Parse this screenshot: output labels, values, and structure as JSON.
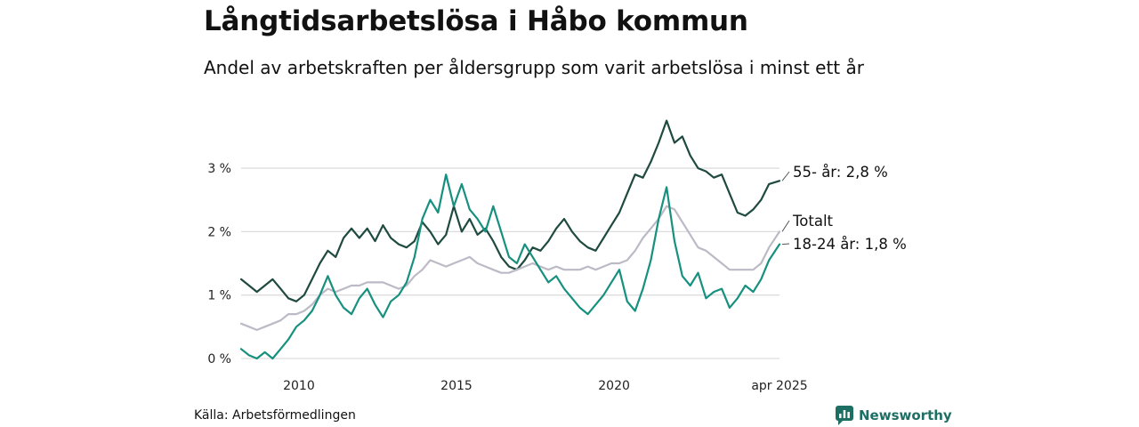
{
  "title": "Långtidsarbetslösa i Håbo kommun",
  "subtitle": "Andel av arbetskraften per åldersgrupp som varit arbetslösa i minst ett år",
  "source": "Källa: Arbetsförmedlingen",
  "logo": {
    "text": "Newsworthy",
    "icon": "newsworthy-logo-icon"
  },
  "colors": {
    "older": "#1f4a40",
    "young": "#16907f",
    "total": "#bcbac6",
    "grid": "#dddddd",
    "brand": "#1d6f63"
  },
  "chart_data": {
    "type": "line",
    "title": "Långtidsarbetslösa i Håbo kommun",
    "xlabel": "",
    "ylabel": "",
    "grid": true,
    "legend": "direct labels at line ends (right)",
    "x_ticks": [
      "2010",
      "2015",
      "2020",
      "apr 2025"
    ],
    "y_ticks": [
      "0 %",
      "1 %",
      "2 %",
      "3 %"
    ],
    "ylim": [
      0,
      3.8
    ],
    "xlim": [
      "2008-03",
      "2025-04"
    ],
    "series": [
      {
        "key": "older",
        "label": "55- år: 2,8 %",
        "values": [
          [
            "2008-03",
            1.25
          ],
          [
            "2008-06",
            1.15
          ],
          [
            "2008-09",
            1.05
          ],
          [
            "2008-12",
            1.15
          ],
          [
            "2009-03",
            1.25
          ],
          [
            "2009-06",
            1.1
          ],
          [
            "2009-09",
            0.95
          ],
          [
            "2009-12",
            0.9
          ],
          [
            "2010-03",
            1.0
          ],
          [
            "2010-06",
            1.25
          ],
          [
            "2010-09",
            1.5
          ],
          [
            "2010-12",
            1.7
          ],
          [
            "2011-03",
            1.6
          ],
          [
            "2011-06",
            1.9
          ],
          [
            "2011-09",
            2.05
          ],
          [
            "2011-12",
            1.9
          ],
          [
            "2012-03",
            2.05
          ],
          [
            "2012-06",
            1.85
          ],
          [
            "2012-09",
            2.1
          ],
          [
            "2012-12",
            1.9
          ],
          [
            "2013-03",
            1.8
          ],
          [
            "2013-06",
            1.75
          ],
          [
            "2013-09",
            1.85
          ],
          [
            "2013-12",
            2.15
          ],
          [
            "2014-03",
            2.0
          ],
          [
            "2014-06",
            1.8
          ],
          [
            "2014-09",
            1.95
          ],
          [
            "2014-12",
            2.4
          ],
          [
            "2015-03",
            2.0
          ],
          [
            "2015-06",
            2.2
          ],
          [
            "2015-09",
            1.95
          ],
          [
            "2015-12",
            2.05
          ],
          [
            "2016-03",
            1.85
          ],
          [
            "2016-06",
            1.6
          ],
          [
            "2016-09",
            1.45
          ],
          [
            "2016-12",
            1.4
          ],
          [
            "2017-03",
            1.55
          ],
          [
            "2017-06",
            1.75
          ],
          [
            "2017-09",
            1.7
          ],
          [
            "2017-12",
            1.85
          ],
          [
            "2018-03",
            2.05
          ],
          [
            "2018-06",
            2.2
          ],
          [
            "2018-09",
            2.0
          ],
          [
            "2018-12",
            1.85
          ],
          [
            "2019-03",
            1.75
          ],
          [
            "2019-06",
            1.7
          ],
          [
            "2019-09",
            1.9
          ],
          [
            "2019-12",
            2.1
          ],
          [
            "2020-03",
            2.3
          ],
          [
            "2020-06",
            2.6
          ],
          [
            "2020-09",
            2.9
          ],
          [
            "2020-12",
            2.85
          ],
          [
            "2021-03",
            3.1
          ],
          [
            "2021-06",
            3.4
          ],
          [
            "2021-09",
            3.75
          ],
          [
            "2021-12",
            3.4
          ],
          [
            "2022-03",
            3.5
          ],
          [
            "2022-06",
            3.2
          ],
          [
            "2022-09",
            3.0
          ],
          [
            "2022-12",
            2.95
          ],
          [
            "2023-03",
            2.85
          ],
          [
            "2023-06",
            2.9
          ],
          [
            "2023-09",
            2.6
          ],
          [
            "2023-12",
            2.3
          ],
          [
            "2024-03",
            2.25
          ],
          [
            "2024-06",
            2.35
          ],
          [
            "2024-09",
            2.5
          ],
          [
            "2024-12",
            2.75
          ],
          [
            "2025-04",
            2.8
          ]
        ]
      },
      {
        "key": "total",
        "label": "Totalt",
        "values": [
          [
            "2008-03",
            0.55
          ],
          [
            "2008-06",
            0.5
          ],
          [
            "2008-09",
            0.45
          ],
          [
            "2008-12",
            0.5
          ],
          [
            "2009-03",
            0.55
          ],
          [
            "2009-06",
            0.6
          ],
          [
            "2009-09",
            0.7
          ],
          [
            "2009-12",
            0.7
          ],
          [
            "2010-03",
            0.75
          ],
          [
            "2010-06",
            0.85
          ],
          [
            "2010-09",
            1.0
          ],
          [
            "2010-12",
            1.1
          ],
          [
            "2011-03",
            1.05
          ],
          [
            "2011-06",
            1.1
          ],
          [
            "2011-09",
            1.15
          ],
          [
            "2011-12",
            1.15
          ],
          [
            "2012-03",
            1.2
          ],
          [
            "2012-06",
            1.2
          ],
          [
            "2012-09",
            1.2
          ],
          [
            "2012-12",
            1.15
          ],
          [
            "2013-03",
            1.1
          ],
          [
            "2013-06",
            1.15
          ],
          [
            "2013-09",
            1.3
          ],
          [
            "2013-12",
            1.4
          ],
          [
            "2014-03",
            1.55
          ],
          [
            "2014-06",
            1.5
          ],
          [
            "2014-09",
            1.45
          ],
          [
            "2014-12",
            1.5
          ],
          [
            "2015-03",
            1.55
          ],
          [
            "2015-06",
            1.6
          ],
          [
            "2015-09",
            1.5
          ],
          [
            "2015-12",
            1.45
          ],
          [
            "2016-03",
            1.4
          ],
          [
            "2016-06",
            1.35
          ],
          [
            "2016-09",
            1.35
          ],
          [
            "2016-12",
            1.4
          ],
          [
            "2017-03",
            1.45
          ],
          [
            "2017-06",
            1.5
          ],
          [
            "2017-09",
            1.45
          ],
          [
            "2017-12",
            1.4
          ],
          [
            "2018-03",
            1.45
          ],
          [
            "2018-06",
            1.4
          ],
          [
            "2018-09",
            1.4
          ],
          [
            "2018-12",
            1.4
          ],
          [
            "2019-03",
            1.45
          ],
          [
            "2019-06",
            1.4
          ],
          [
            "2019-09",
            1.45
          ],
          [
            "2019-12",
            1.5
          ],
          [
            "2020-03",
            1.5
          ],
          [
            "2020-06",
            1.55
          ],
          [
            "2020-09",
            1.7
          ],
          [
            "2020-12",
            1.9
          ],
          [
            "2021-03",
            2.05
          ],
          [
            "2021-06",
            2.2
          ],
          [
            "2021-09",
            2.4
          ],
          [
            "2021-12",
            2.35
          ],
          [
            "2022-03",
            2.15
          ],
          [
            "2022-06",
            1.95
          ],
          [
            "2022-09",
            1.75
          ],
          [
            "2022-12",
            1.7
          ],
          [
            "2023-03",
            1.6
          ],
          [
            "2023-06",
            1.5
          ],
          [
            "2023-09",
            1.4
          ],
          [
            "2023-12",
            1.4
          ],
          [
            "2024-03",
            1.4
          ],
          [
            "2024-06",
            1.4
          ],
          [
            "2024-09",
            1.5
          ],
          [
            "2024-12",
            1.75
          ],
          [
            "2025-04",
            2.0
          ]
        ]
      },
      {
        "key": "young",
        "label": "18-24 år: 1,8 %",
        "values": [
          [
            "2008-03",
            0.15
          ],
          [
            "2008-06",
            0.05
          ],
          [
            "2008-09",
            0.0
          ],
          [
            "2008-12",
            0.1
          ],
          [
            "2009-03",
            0.0
          ],
          [
            "2009-06",
            0.15
          ],
          [
            "2009-09",
            0.3
          ],
          [
            "2009-12",
            0.5
          ],
          [
            "2010-03",
            0.6
          ],
          [
            "2010-06",
            0.75
          ],
          [
            "2010-09",
            1.0
          ],
          [
            "2010-12",
            1.3
          ],
          [
            "2011-03",
            1.0
          ],
          [
            "2011-06",
            0.8
          ],
          [
            "2011-09",
            0.7
          ],
          [
            "2011-12",
            0.95
          ],
          [
            "2012-03",
            1.1
          ],
          [
            "2012-06",
            0.85
          ],
          [
            "2012-09",
            0.65
          ],
          [
            "2012-12",
            0.9
          ],
          [
            "2013-03",
            1.0
          ],
          [
            "2013-06",
            1.2
          ],
          [
            "2013-09",
            1.6
          ],
          [
            "2013-12",
            2.2
          ],
          [
            "2014-03",
            2.5
          ],
          [
            "2014-06",
            2.3
          ],
          [
            "2014-09",
            2.9
          ],
          [
            "2014-12",
            2.4
          ],
          [
            "2015-03",
            2.75
          ],
          [
            "2015-06",
            2.35
          ],
          [
            "2015-09",
            2.2
          ],
          [
            "2015-12",
            2.0
          ],
          [
            "2016-03",
            2.4
          ],
          [
            "2016-06",
            2.0
          ],
          [
            "2016-09",
            1.6
          ],
          [
            "2016-12",
            1.5
          ],
          [
            "2017-03",
            1.8
          ],
          [
            "2017-06",
            1.6
          ],
          [
            "2017-09",
            1.4
          ],
          [
            "2017-12",
            1.2
          ],
          [
            "2018-03",
            1.3
          ],
          [
            "2018-06",
            1.1
          ],
          [
            "2018-09",
            0.95
          ],
          [
            "2018-12",
            0.8
          ],
          [
            "2019-03",
            0.7
          ],
          [
            "2019-06",
            0.85
          ],
          [
            "2019-09",
            1.0
          ],
          [
            "2019-12",
            1.2
          ],
          [
            "2020-03",
            1.4
          ],
          [
            "2020-06",
            0.9
          ],
          [
            "2020-09",
            0.75
          ],
          [
            "2020-12",
            1.1
          ],
          [
            "2021-03",
            1.55
          ],
          [
            "2021-06",
            2.2
          ],
          [
            "2021-09",
            2.7
          ],
          [
            "2021-12",
            1.85
          ],
          [
            "2022-03",
            1.3
          ],
          [
            "2022-06",
            1.15
          ],
          [
            "2022-09",
            1.35
          ],
          [
            "2022-12",
            0.95
          ],
          [
            "2023-03",
            1.05
          ],
          [
            "2023-06",
            1.1
          ],
          [
            "2023-09",
            0.8
          ],
          [
            "2023-12",
            0.95
          ],
          [
            "2024-03",
            1.15
          ],
          [
            "2024-06",
            1.05
          ],
          [
            "2024-09",
            1.25
          ],
          [
            "2024-12",
            1.55
          ],
          [
            "2025-04",
            1.8
          ]
        ]
      }
    ]
  }
}
